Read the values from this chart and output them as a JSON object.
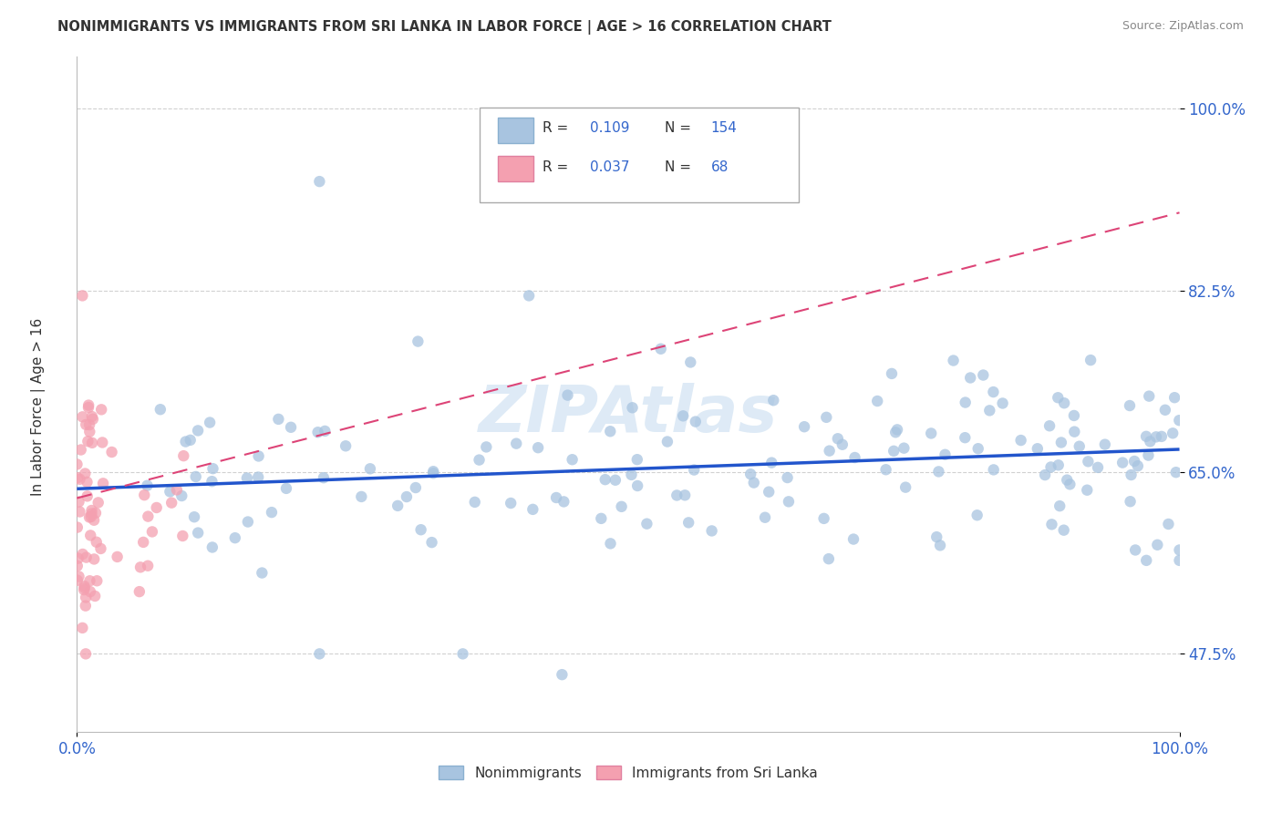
{
  "title": "NONIMMIGRANTS VS IMMIGRANTS FROM SRI LANKA IN LABOR FORCE | AGE > 16 CORRELATION CHART",
  "source": "Source: ZipAtlas.com",
  "ylabel": "In Labor Force | Age > 16",
  "xlim": [
    0.0,
    1.0
  ],
  "ylim": [
    0.4,
    1.05
  ],
  "yticks": [
    0.475,
    0.65,
    0.825,
    1.0
  ],
  "ytick_labels": [
    "47.5%",
    "65.0%",
    "82.5%",
    "100.0%"
  ],
  "xticks": [
    0.0,
    1.0
  ],
  "xtick_labels": [
    "0.0%",
    "100.0%"
  ],
  "legend_labels": [
    "Nonimmigrants",
    "Immigrants from Sri Lanka"
  ],
  "R_nonimm": 0.109,
  "N_nonimm": 154,
  "R_imm": 0.037,
  "N_imm": 68,
  "nonimm_color": "#a8c4e0",
  "imm_color": "#f4a0b0",
  "nonimm_line_color": "#2255cc",
  "imm_line_color": "#dd4477",
  "legend_text_color": "#3366cc",
  "watermark": "ZIPAtlas",
  "grid_color": "#cccccc",
  "background_color": "#ffffff",
  "blue_line_x0": 0.0,
  "blue_line_y0": 0.634,
  "blue_line_x1": 1.0,
  "blue_line_y1": 0.672,
  "pink_line_x0": 0.0,
  "pink_line_y0": 0.625,
  "pink_line_x1": 1.0,
  "pink_line_y1": 0.9
}
